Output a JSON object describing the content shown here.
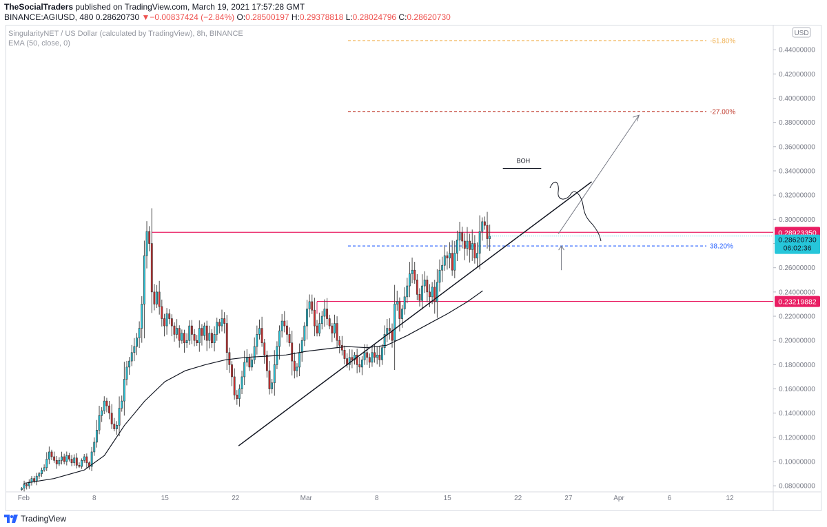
{
  "header": {
    "publisher": "TheSocialTraders",
    "published_text": "published on TradingView.com, March 19, 2021 17:57:28 GMT",
    "symbol": "BINANCE:AGIUSD, 480",
    "last": "0.28620730",
    "change_arrow": "▼",
    "change": "−0.00837424 (−2.84%)",
    "o_label": "O:",
    "o": "0.28500197",
    "h_label": "H:",
    "h": "0.29378818",
    "l_label": "L:",
    "l": "0.28024796",
    "c_label": "C:",
    "c": "0.28620730"
  },
  "legend": {
    "title": "SingularityNET / US Dollar (calculated by TradingView), 8h, BINANCE",
    "indicator": "EMA (50, close, 0)"
  },
  "currency_badge": "USD",
  "footer": {
    "brand": "TradingView",
    "logo_icon": "tradingview-logo-icon"
  },
  "chart_data": {
    "type": "candlestick",
    "y_range": [
      0.075,
      0.46
    ],
    "y_ticks": [
      "0.08000000",
      "0.10000000",
      "0.12000000",
      "0.14000000",
      "0.16000000",
      "0.18000000",
      "0.20000000",
      "0.22000000",
      "0.24000000",
      "0.26000000",
      "0.28000000",
      "0.30000000",
      "0.32000000",
      "0.34000000",
      "0.36000000",
      "0.38000000",
      "0.40000000",
      "0.42000000",
      "0.44000000"
    ],
    "x_ticks": [
      {
        "label": "Feb",
        "day": 0
      },
      {
        "label": "8",
        "day": 7
      },
      {
        "label": "15",
        "day": 14
      },
      {
        "label": "22",
        "day": 21
      },
      {
        "label": "Mar",
        "day": 28
      },
      {
        "label": "8",
        "day": 35
      },
      {
        "label": "15",
        "day": 42
      },
      {
        "label": "22",
        "day": 49
      },
      {
        "label": "27",
        "day": 54
      },
      {
        "label": "Apr",
        "day": 59
      },
      {
        "label": "6",
        "day": 64
      },
      {
        "label": "12",
        "day": 70
      }
    ],
    "x_range_days": [
      -1.8,
      74.3
    ],
    "candles_close": [
      0.078,
      0.081,
      0.08,
      0.083,
      0.086,
      0.084,
      0.088,
      0.09,
      0.093,
      0.095,
      0.102,
      0.108,
      0.104,
      0.101,
      0.098,
      0.101,
      0.104,
      0.1,
      0.105,
      0.102,
      0.099,
      0.103,
      0.097,
      0.096,
      0.101,
      0.104,
      0.099,
      0.096,
      0.108,
      0.116,
      0.126,
      0.138,
      0.142,
      0.15,
      0.146,
      0.14,
      0.131,
      0.127,
      0.13,
      0.144,
      0.15,
      0.168,
      0.178,
      0.183,
      0.19,
      0.195,
      0.202,
      0.21,
      0.23,
      0.27,
      0.29,
      0.28,
      0.24,
      0.23,
      0.24,
      0.228,
      0.218,
      0.212,
      0.222,
      0.218,
      0.212,
      0.205,
      0.21,
      0.2,
      0.206,
      0.198,
      0.2,
      0.212,
      0.205,
      0.2,
      0.198,
      0.21,
      0.204,
      0.212,
      0.2,
      0.206,
      0.198,
      0.205,
      0.215,
      0.212,
      0.218,
      0.214,
      0.19,
      0.18,
      0.17,
      0.155,
      0.152,
      0.16,
      0.17,
      0.182,
      0.186,
      0.178,
      0.184,
      0.195,
      0.205,
      0.21,
      0.198,
      0.188,
      0.175,
      0.16,
      0.165,
      0.18,
      0.195,
      0.208,
      0.216,
      0.212,
      0.205,
      0.198,
      0.183,
      0.175,
      0.178,
      0.19,
      0.2,
      0.212,
      0.226,
      0.232,
      0.225,
      0.212,
      0.206,
      0.214,
      0.22,
      0.226,
      0.218,
      0.212,
      0.206,
      0.214,
      0.2,
      0.196,
      0.192,
      0.185,
      0.18,
      0.186,
      0.184,
      0.188,
      0.18,
      0.178,
      0.184,
      0.19,
      0.186,
      0.182,
      0.19,
      0.186,
      0.188,
      0.184,
      0.194,
      0.205,
      0.21,
      0.208,
      0.2,
      0.23,
      0.232,
      0.218,
      0.226,
      0.236,
      0.245,
      0.255,
      0.258,
      0.25,
      0.238,
      0.233,
      0.245,
      0.25,
      0.24,
      0.236,
      0.244,
      0.232,
      0.248,
      0.258,
      0.262,
      0.27,
      0.268,
      0.272,
      0.258,
      0.272,
      0.283,
      0.289,
      0.282,
      0.276,
      0.282,
      0.275,
      0.28,
      0.268,
      0.272,
      0.29,
      0.298,
      0.295,
      0.284,
      0.286
    ],
    "ema": [
      [
        0,
        0.082
      ],
      [
        3,
        0.086
      ],
      [
        6,
        0.093
      ],
      [
        8,
        0.105
      ],
      [
        10,
        0.13
      ],
      [
        12,
        0.15
      ],
      [
        14,
        0.166
      ],
      [
        16,
        0.175
      ],
      [
        18,
        0.18
      ],
      [
        20,
        0.184
      ],
      [
        22,
        0.186
      ],
      [
        24,
        0.187
      ],
      [
        26,
        0.188
      ],
      [
        28,
        0.191
      ],
      [
        30,
        0.193
      ],
      [
        32,
        0.195
      ],
      [
        34,
        0.194
      ],
      [
        36,
        0.196
      ],
      [
        38,
        0.204
      ],
      [
        40,
        0.213
      ],
      [
        42,
        0.222
      ],
      [
        44,
        0.232
      ],
      [
        45.5,
        0.241
      ]
    ],
    "annotations": {
      "horizontal_lines": [
        {
          "value": 0.2892335,
          "label": "0.28923350",
          "color": "#e91e63"
        },
        {
          "value": 0.23219882,
          "label": "0.23219882",
          "color": "#e91e63"
        }
      ],
      "last_price": {
        "value": 0.2862073,
        "label": "0.28620730",
        "countdown": "06:02:36",
        "color": "#26c6da"
      },
      "fib_levels": [
        {
          "value": 0.4475,
          "label": "-61.80%",
          "color": "#f0b050"
        },
        {
          "value": 0.389,
          "label": "-27.00%",
          "color": "#c0392b"
        },
        {
          "value": 0.278,
          "label": "38.20%",
          "color": "#2962ff"
        }
      ],
      "trendline": {
        "from": [
          21.3,
          0.113
        ],
        "to": [
          56.3,
          0.331
        ]
      },
      "projection_arrow": {
        "from": [
          53.0,
          0.288
        ],
        "to": [
          61.0,
          0.386
        ]
      },
      "up_arrow": {
        "at": [
          53.3,
          0.258
        ],
        "to": [
          53.3,
          0.278
        ]
      },
      "boh_label": "BOH",
      "boh_line": {
        "from": [
          47.5,
          0.342
        ],
        "to": [
          51.3,
          0.342
        ]
      }
    }
  }
}
